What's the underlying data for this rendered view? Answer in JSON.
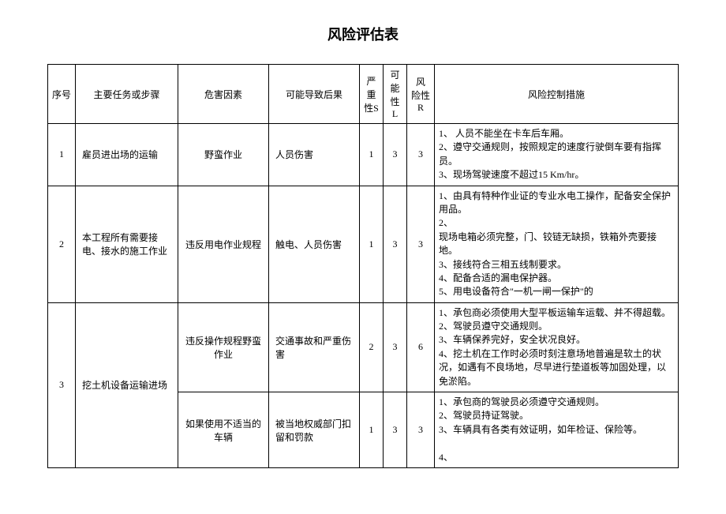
{
  "title": "风险评估表",
  "headers": {
    "seq": "序号",
    "task": "主要任务或步骤",
    "hazard": "危害因素",
    "conseq": "可能导致后果",
    "s": "严 重性S",
    "l": "可能性L",
    "r": "风 险性R",
    "ctrl": "风险控制措施"
  },
  "rows": {
    "r1": {
      "seq": "1",
      "task": "雇员进出场的运输",
      "hazard": "野蛮作业",
      "conseq": "人员伤害",
      "s": "1",
      "l": "3",
      "r": "3",
      "ctrl": "1、 人员不能坐在卡车后车厢。\n 2、遵守交通规则，按照规定的速度行驶倒车要有指挥员。\n3、现场驾驶速度不超过15 Km/hr。"
    },
    "r2": {
      "seq": "2",
      "task": "本工程所有需要接电、接水的施工作业",
      "hazard": "违反用电作业规程",
      "conseq": "触电、人员伤害",
      "s": "1",
      "l": "3",
      "r": "3",
      "ctrl": "1、由具有特种作业证的专业水电工操作，配备安全保护用品。\n2、\n 现场电箱必须完整，门、铰链无缺损，铁箱外壳要接地。\n3、接线符合三相五线制要求。\n4、配备合适的漏电保护器。\n 5、用电设备符合\"一机一闸一保护\"的"
    },
    "r3a": {
      "seq": "3",
      "task": "挖土机设备运输进场",
      "hazard": "违反操作规程野蛮作业",
      "conseq": "交通事故和严重伤害",
      "s": "2",
      "l": "3",
      "r": "6",
      "ctrl": "1、承包商必须使用大型平板运输车运载、并不得超载。\n2、驾驶员遵守交通规则。\n3、车辆保养完好，安全状况良好。\n 4、挖土机在工作时必须时刻注意场地普遍是软土的状况，如遇有不良场地，尽早进行垫道板等加固处理，以免淤陷。"
    },
    "r3b": {
      "hazard": "如果使用不适当的车辆",
      "conseq": "被当地权威部门扣留和罚款",
      "s": "1",
      "l": "3",
      "r": "3",
      "ctrl": "1、承包商的驾驶员必须遵守交通规则。\n2、驾驶员持证驾驶。\n 3、车辆具有各类有效证明，如年检证、保险等。\n\n4、"
    }
  },
  "style": {
    "background": "#ffffff",
    "text_color": "#000000",
    "border_color": "#000000",
    "title_fontsize": 18,
    "body_fontsize": 12,
    "font_family": "SimSun"
  }
}
